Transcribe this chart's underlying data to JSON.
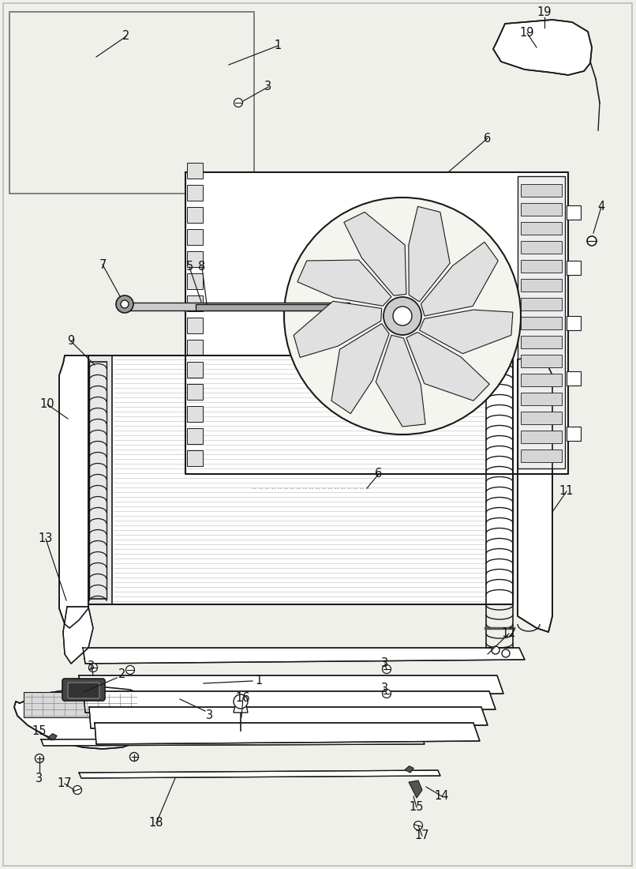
{
  "bg_color": "#f0f0eb",
  "watermark_color": "#e0a0a0",
  "watermark_alpha": 0.3,
  "line_color": "#1a1a1a",
  "label_fontsize": 10.5,
  "border_color": "#bbbbbb"
}
